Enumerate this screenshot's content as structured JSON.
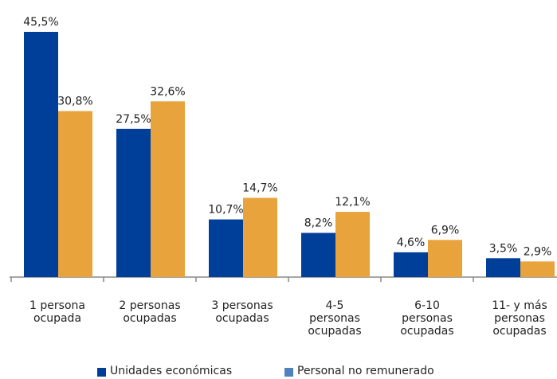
{
  "chart_data": {
    "type": "bar",
    "categories": [
      "1 persona\nocupada",
      "2 personas\nocupadas",
      "3 personas\nocupadas",
      "4-5\npersonas\nocupadas",
      "6-10\npersonas\nocupadas",
      "11- y más\npersonas\nocupadas"
    ],
    "series": [
      {
        "name": "Unidades económicas",
        "color": "#003f99",
        "legend_color": "#003f99",
        "values": [
          45.5,
          27.5,
          10.7,
          8.2,
          4.6,
          3.5
        ],
        "value_labels": [
          "45,5%",
          "27,5%",
          "10,7%",
          "8,2%",
          "4,6%",
          "3,5%"
        ]
      },
      {
        "name": "Personal no remunerado",
        "color": "#e8a33c",
        "legend_color": "#4f81bd",
        "values": [
          30.8,
          32.6,
          14.7,
          12.1,
          6.9,
          2.9
        ],
        "value_labels": [
          "30,8%",
          "32,6%",
          "14,7%",
          "12,1%",
          "6,9%",
          "2,9%"
        ]
      }
    ]
  }
}
